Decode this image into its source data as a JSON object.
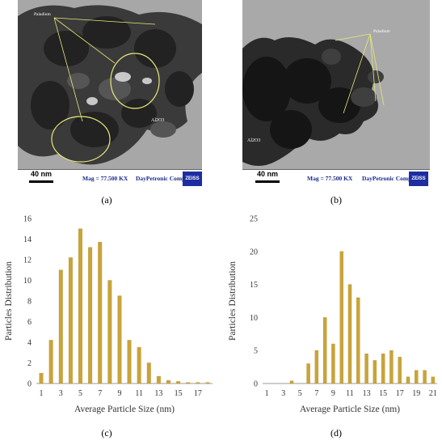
{
  "panels": {
    "a": {
      "caption": "(a)",
      "annotation": "Paladium",
      "region_label": "Al2O3",
      "scale": "40 nm",
      "mag": "Mag = 77.500 KX",
      "company": "DayPetronic Company",
      "logo": "ZEISS"
    },
    "b": {
      "caption": "(b)",
      "annotation": "Paladium",
      "region_label": "Al2O3",
      "scale": "40 nm",
      "mag": "Mag = 77.500 KX",
      "company": "DayPetronic Company",
      "logo": "ZEISS"
    },
    "c": {
      "caption": "(c)"
    },
    "d": {
      "caption": "(d)"
    }
  },
  "colors": {
    "bar": "#c9a43a",
    "bar_edge": "#b8932a",
    "axis": "#999999"
  },
  "chart_data": [
    {
      "type": "bar",
      "panel": "c",
      "xlabel": "Average Particle Size (nm)",
      "ylabel": "Particles Distribution",
      "ylim": [
        0,
        16
      ],
      "yticks": [
        0,
        2,
        4,
        6,
        8,
        10,
        12,
        14,
        16
      ],
      "xticks": [
        1,
        3,
        5,
        7,
        9,
        11,
        13,
        15,
        17
      ],
      "x": [
        1,
        2,
        3,
        4,
        5,
        6,
        7,
        8,
        9,
        10,
        11,
        12,
        13,
        14,
        15,
        16,
        17,
        18
      ],
      "values": [
        1.0,
        4.2,
        11.0,
        12.2,
        15.0,
        13.2,
        13.7,
        10.0,
        8.5,
        4.2,
        3.5,
        2.0,
        0.7,
        0.3,
        0.2,
        0.1,
        0.1,
        0.1
      ]
    },
    {
      "type": "bar",
      "panel": "d",
      "xlabel": "Average Particle Size (nm)",
      "ylabel": "Particles Distribution",
      "ylim": [
        0,
        25
      ],
      "yticks": [
        0,
        5,
        10,
        15,
        20,
        25
      ],
      "xticks": [
        1,
        3,
        5,
        7,
        9,
        11,
        13,
        15,
        17,
        19,
        21
      ],
      "x": [
        1,
        2,
        3,
        4,
        5,
        6,
        7,
        8,
        9,
        10,
        11,
        12,
        13,
        14,
        15,
        16,
        17,
        18,
        19,
        20,
        21
      ],
      "values": [
        0,
        0,
        0,
        0.4,
        0,
        3.0,
        5.0,
        10.0,
        6.0,
        20.0,
        15.0,
        13.0,
        4.5,
        3.5,
        4.5,
        5.0,
        4.0,
        1.0,
        2.0,
        2.0,
        1.0
      ]
    }
  ]
}
